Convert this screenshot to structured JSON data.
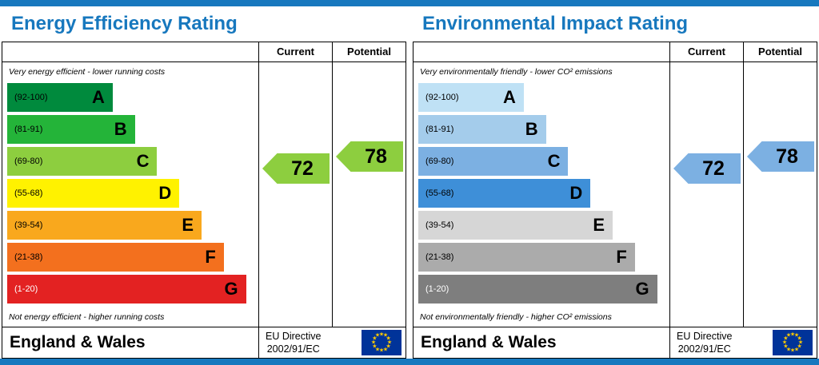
{
  "colors": {
    "strip": "#1778be",
    "title": "#1778be"
  },
  "panels": [
    {
      "title": "Energy Efficiency Rating",
      "columns": {
        "current": "Current",
        "potential": "Potential"
      },
      "top_caption": "Very energy efficient - lower running costs",
      "bottom_caption": "Not energy efficient - higher running costs",
      "bands": [
        {
          "range": "(92-100)",
          "letter": "A",
          "color": "#008a3d"
        },
        {
          "range": "(81-91)",
          "letter": "B",
          "color": "#24b439"
        },
        {
          "range": "(69-80)",
          "letter": "C",
          "color": "#8dce3f"
        },
        {
          "range": "(55-68)",
          "letter": "D",
          "color": "#fff200"
        },
        {
          "range": "(39-54)",
          "letter": "E",
          "color": "#f9a81d"
        },
        {
          "range": "(21-38)",
          "letter": "F",
          "color": "#f3701e"
        },
        {
          "range": "(1-20)",
          "letter": "G",
          "color": "#e32222"
        }
      ],
      "current": {
        "value": 72,
        "band": "C"
      },
      "potential": {
        "value": 78,
        "band": "C"
      },
      "arrow_color": "#8dce3f"
    },
    {
      "title": "Environmental Impact Rating",
      "columns": {
        "current": "Current",
        "potential": "Potential"
      },
      "top_caption": "Very environmentally friendly - lower CO² emissions",
      "bottom_caption": "Not environmentally friendly - higher CO² emissions",
      "bands": [
        {
          "range": "(92-100)",
          "letter": "A",
          "color": "#bfe1f5"
        },
        {
          "range": "(81-91)",
          "letter": "B",
          "color": "#a4cceb"
        },
        {
          "range": "(69-80)",
          "letter": "C",
          "color": "#7cb0e2"
        },
        {
          "range": "(55-68)",
          "letter": "D",
          "color": "#3e8fd8"
        },
        {
          "range": "(39-54)",
          "letter": "E",
          "color": "#d6d6d6"
        },
        {
          "range": "(21-38)",
          "letter": "F",
          "color": "#ababab"
        },
        {
          "range": "(1-20)",
          "letter": "G",
          "color": "#7e7e7e"
        }
      ],
      "current": {
        "value": 72,
        "band": "C"
      },
      "potential": {
        "value": 78,
        "band": "C"
      },
      "arrow_color": "#7cb0e2"
    }
  ],
  "footer": {
    "region": "England & Wales",
    "directive_line1": "EU Directive",
    "directive_line2": "2002/91/EC",
    "flag": {
      "bg": "#003399",
      "stars": "#ffcc00"
    }
  },
  "chart_data": [
    {
      "type": "bar",
      "orientation": "horizontal",
      "title": "Energy Efficiency Rating",
      "categories": [
        "A",
        "B",
        "C",
        "D",
        "E",
        "F",
        "G"
      ],
      "band_ranges": [
        "92-100",
        "81-91",
        "69-80",
        "55-68",
        "39-54",
        "21-38",
        "1-20"
      ],
      "markers": {
        "current": 72,
        "potential": 78
      },
      "value_range": [
        1,
        100
      ],
      "annotations": [
        "Very energy efficient - lower running costs",
        "Not energy efficient - higher running costs"
      ]
    },
    {
      "type": "bar",
      "orientation": "horizontal",
      "title": "Environmental Impact Rating",
      "categories": [
        "A",
        "B",
        "C",
        "D",
        "E",
        "F",
        "G"
      ],
      "band_ranges": [
        "92-100",
        "81-91",
        "69-80",
        "55-68",
        "39-54",
        "21-38",
        "1-20"
      ],
      "markers": {
        "current": 72,
        "potential": 78
      },
      "value_range": [
        1,
        100
      ],
      "annotations": [
        "Very environmentally friendly - lower CO² emissions",
        "Not environmentally friendly - higher CO² emissions"
      ]
    }
  ]
}
